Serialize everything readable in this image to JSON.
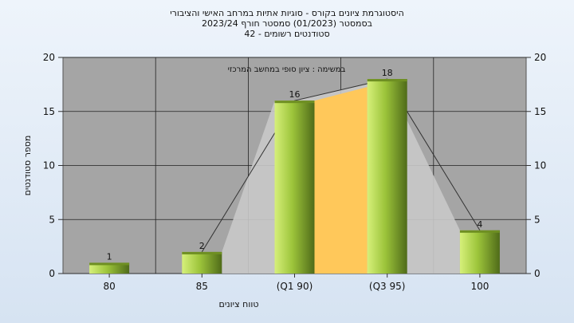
{
  "title_lines": [
    "היסטוגרמת ציונים בקורס - סוגיות אתיות במרחב האישי והציבורי",
    "בסמסטר  (01/2023)  סמסטר חורף  2023/24",
    "סטודנטים רשומים - 42"
  ],
  "chart_data": {
    "type": "bar",
    "categories": [
      "80",
      "85",
      "(Q1 90)",
      "(Q3 95)",
      "100"
    ],
    "values": [
      1,
      2,
      16,
      18,
      4
    ],
    "data_labels": [
      "1",
      "2",
      "16",
      "18",
      "4"
    ],
    "xlabel": "טווח ציונים",
    "ylabel": "מספר סטודנטים",
    "subtitle": "במשימה : ציון סופי במחשב המרכזי",
    "ylim": [
      0,
      20
    ],
    "yticks": [
      "0",
      "5",
      "10",
      "15",
      "20"
    ],
    "grid": true,
    "secondary_y_axis": true,
    "colors": {
      "bar_light": "#d6f07a",
      "bar_mid": "#9cc43a",
      "bar_dark": "#4f6b19",
      "plot_bg": "#a5a5a5",
      "area_gray": "#c9c9c9",
      "area_orange": "#ffc85a",
      "trend_line": "#333333"
    }
  }
}
